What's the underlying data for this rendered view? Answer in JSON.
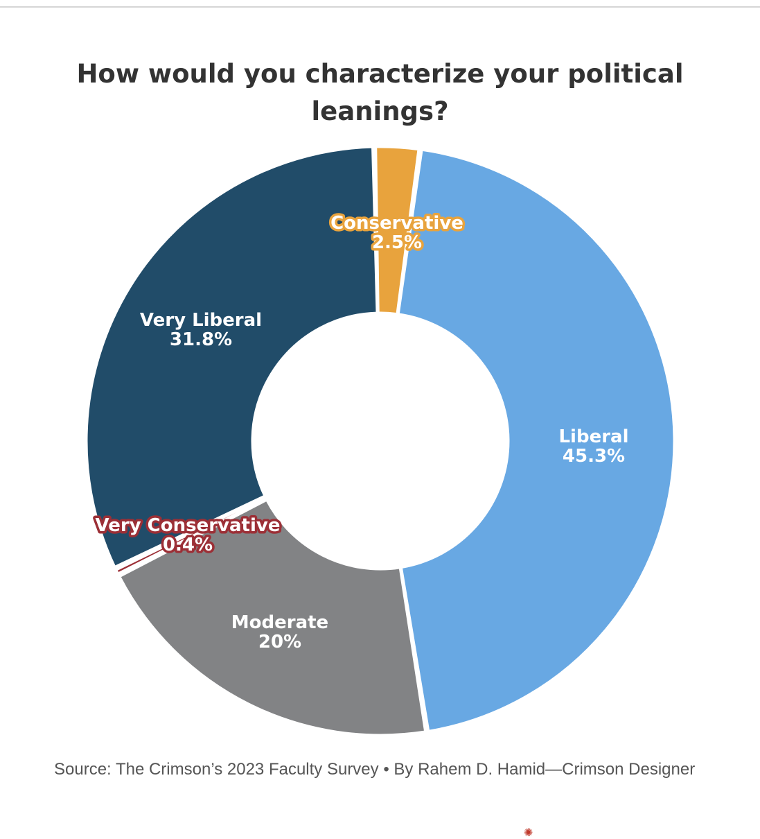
{
  "chart_data": {
    "type": "pie",
    "variant": "donut",
    "title": "How would you characterize your political leanings?",
    "slices": [
      {
        "label": "Conservative",
        "value_text": "2.5%",
        "value": 2.5,
        "color": "#e8a33d"
      },
      {
        "label": "Liberal",
        "value_text": "45.3%",
        "value": 45.3,
        "color": "#68a8e3"
      },
      {
        "label": "Moderate",
        "value_text": "20%",
        "value": 20.0,
        "color": "#828385"
      },
      {
        "label": "Very Conservative",
        "value_text": "0.4%",
        "value": 0.4,
        "color": "#9c2f36"
      },
      {
        "label": "Very Liberal",
        "value_text": "31.8%",
        "value": 31.8,
        "color": "#214c69"
      }
    ],
    "legend": "none"
  },
  "source": "Source: The Crimson’s 2023 Faculty Survey • By Rahem D. Hamid—Crimson Designer",
  "colors": {
    "title": "#333333",
    "source": "#555555",
    "label_light": "#ffffff"
  }
}
